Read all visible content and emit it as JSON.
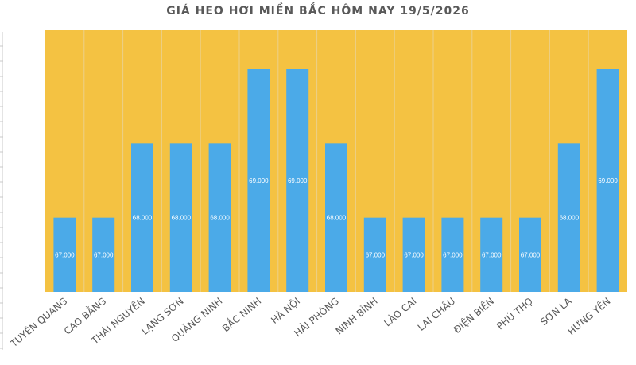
{
  "chart_data": {
    "type": "bar",
    "title": "GIÁ HEO HƠI MIỀN BẮC HÔM NAY 19/5/2026",
    "xlabel": "",
    "ylabel": "",
    "categories": [
      "TUYÊN QUANG",
      "CAO BẰNG",
      "THÁI NGUYÊN",
      "LẠNG SƠN",
      "QUẢNG NINH",
      "BẮC NINH",
      "HÀ NỘI",
      "HẢI PHÒNG",
      "NINH BÌNH",
      "LÀO CAI",
      "LAI CHÂU",
      "ĐIỆN BIÊN",
      "PHÚ THỌ",
      "SƠN LA",
      "HƯNG YÊN"
    ],
    "values": [
      67000,
      67000,
      68000,
      68000,
      68000,
      69000,
      69000,
      68000,
      67000,
      67000,
      67000,
      67000,
      67000,
      68000,
      69000
    ],
    "data_labels": [
      "67.000",
      "67.000",
      "68.000",
      "68.000",
      "68.000",
      "69.000",
      "69.000",
      "68.000",
      "67.000",
      "67.000",
      "67.000",
      "67.000",
      "67.000",
      "68.000",
      "69.000"
    ],
    "ylim": [
      66000,
      69000
    ],
    "grid": false,
    "legend": "none",
    "colors": {
      "plot_background": "#f4c242",
      "bar": "#4baae8",
      "data_label": "#ffffff",
      "axis_label": "#595959",
      "title": "#595959"
    }
  }
}
